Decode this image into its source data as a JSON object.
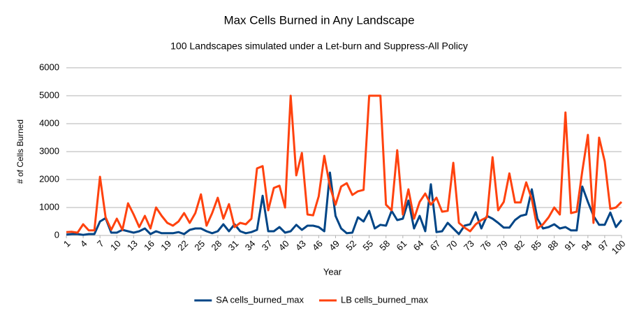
{
  "chart_data": {
    "type": "line",
    "title": "Max Cells Burned in Any Landscape",
    "subtitle": "100 Landscapes simulated under a Let-burn and Suppress-All Policy",
    "x_label": "Year",
    "y_label": "# of Cells Burned",
    "x": [
      1,
      2,
      3,
      4,
      5,
      6,
      7,
      8,
      9,
      10,
      11,
      12,
      13,
      14,
      15,
      16,
      17,
      18,
      19,
      20,
      21,
      22,
      23,
      24,
      25,
      26,
      27,
      28,
      29,
      30,
      31,
      32,
      33,
      34,
      35,
      36,
      37,
      38,
      39,
      40,
      41,
      42,
      43,
      44,
      45,
      46,
      47,
      48,
      49,
      50,
      51,
      52,
      53,
      54,
      55,
      56,
      57,
      58,
      59,
      60,
      61,
      62,
      63,
      64,
      65,
      66,
      67,
      68,
      69,
      70,
      71,
      72,
      73,
      74,
      75,
      76,
      77,
      78,
      79,
      80,
      81,
      82,
      83,
      84,
      85,
      86,
      87,
      88,
      89,
      90,
      91,
      92,
      93,
      94,
      95,
      96,
      97,
      98,
      99,
      100
    ],
    "xlim": [
      1,
      100
    ],
    "xticks": [
      1,
      4,
      7,
      10,
      13,
      16,
      19,
      22,
      25,
      28,
      31,
      34,
      37,
      40,
      43,
      46,
      49,
      52,
      55,
      58,
      61,
      64,
      67,
      70,
      73,
      76,
      79,
      82,
      85,
      88,
      91,
      94,
      97,
      100
    ],
    "ylim": [
      0,
      6000
    ],
    "yticks": [
      0,
      1000,
      2000,
      3000,
      4000,
      5000,
      6000
    ],
    "grid": true,
    "legend": "bottom",
    "series": [
      {
        "name": "SA cells_burned_max",
        "color": "#004586",
        "values": [
          30,
          50,
          50,
          20,
          50,
          50,
          500,
          620,
          100,
          100,
          200,
          150,
          100,
          150,
          250,
          50,
          150,
          80,
          80,
          80,
          120,
          50,
          200,
          250,
          250,
          150,
          80,
          150,
          400,
          150,
          400,
          150,
          80,
          120,
          200,
          1420,
          150,
          150,
          300,
          100,
          150,
          380,
          200,
          350,
          350,
          300,
          150,
          2250,
          700,
          250,
          80,
          100,
          650,
          500,
          880,
          250,
          380,
          350,
          880,
          550,
          600,
          1250,
          250,
          700,
          150,
          1830,
          120,
          150,
          450,
          250,
          50,
          350,
          400,
          830,
          250,
          700,
          600,
          450,
          280,
          280,
          550,
          700,
          750,
          1650,
          600,
          250,
          300,
          400,
          250,
          300,
          180,
          180,
          1750,
          1200,
          700,
          380,
          380,
          820,
          300,
          550
        ]
      },
      {
        "name": "LB cells_burned_max",
        "color": "#ff420e",
        "values": [
          120,
          130,
          100,
          400,
          180,
          180,
          2100,
          650,
          200,
          600,
          200,
          1150,
          750,
          300,
          700,
          250,
          1000,
          700,
          450,
          350,
          500,
          800,
          450,
          800,
          1470,
          350,
          800,
          1350,
          600,
          1120,
          300,
          450,
          400,
          600,
          2400,
          2480,
          900,
          1700,
          1780,
          1000,
          5000,
          2150,
          2950,
          750,
          720,
          1400,
          2850,
          1750,
          1100,
          1750,
          1870,
          1450,
          1580,
          1630,
          5000,
          5000,
          5000,
          1100,
          900,
          3050,
          750,
          1650,
          600,
          1200,
          1500,
          1100,
          1350,
          850,
          880,
          2600,
          450,
          280,
          150,
          400,
          550,
          650,
          2800,
          900,
          1200,
          2220,
          1180,
          1180,
          1900,
          1300,
          250,
          400,
          650,
          1000,
          750,
          4400,
          800,
          850,
          2300,
          3600,
          450,
          3500,
          2650,
          950,
          1000,
          1200
        ]
      }
    ]
  }
}
